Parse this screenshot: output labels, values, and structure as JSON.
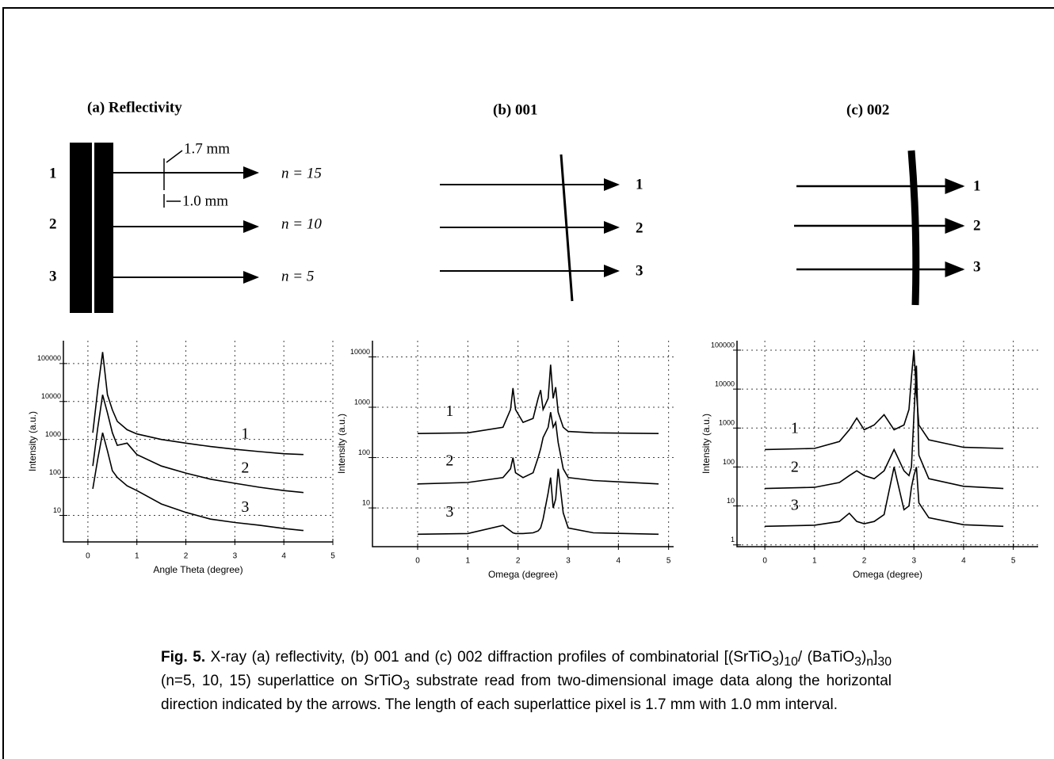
{
  "panels": [
    {
      "title": "(a) Reflectivity",
      "rows": [
        "1",
        "2",
        "3"
      ],
      "arrow_labels": [
        "n = 15",
        "n = 10",
        "n = 5"
      ],
      "dims": [
        "1.7 mm",
        "1.0 mm"
      ]
    },
    {
      "title": "(b) 001",
      "rows": [
        "1",
        "2",
        "3"
      ]
    },
    {
      "title": "(c) 002",
      "rows": [
        "1",
        "2",
        "3"
      ]
    }
  ],
  "chart_data": [
    {
      "type": "line",
      "xlabel": "Angle Theta (degree)",
      "ylabel": "Intensity (a.u.)",
      "log_y": true,
      "grid": true,
      "x": [
        0.1,
        0.2,
        0.3,
        0.4,
        0.5,
        0.6,
        0.8,
        1,
        1.5,
        2,
        2.5,
        3,
        3.5,
        4,
        4.4
      ],
      "xlim": [
        -0.5,
        5
      ],
      "xticks": [
        0,
        1,
        2,
        3,
        4,
        5
      ],
      "ylim": [
        2,
        400000
      ],
      "yticks": [
        10,
        100,
        1000,
        10000,
        100000
      ],
      "series": [
        {
          "name": "1",
          "color": "#000000",
          "values": [
            1500,
            20000,
            200000,
            15000,
            6000,
            3000,
            1800,
            1400,
            1000,
            800,
            650,
            550,
            480,
            420,
            400
          ]
        },
        {
          "name": "2",
          "color": "#000000",
          "values": [
            200,
            2000,
            15000,
            5000,
            1500,
            700,
            800,
            400,
            200,
            130,
            90,
            70,
            55,
            45,
            40
          ]
        },
        {
          "name": "3",
          "color": "#000000",
          "values": [
            50,
            300,
            1500,
            500,
            150,
            100,
            60,
            45,
            20,
            12,
            8,
            6.5,
            5.5,
            4.5,
            4
          ]
        }
      ]
    },
    {
      "type": "line",
      "xlabel": "Omega (degree)",
      "ylabel": "Intensity (a.u.)",
      "log_y": true,
      "grid": true,
      "x": [
        0,
        1,
        1.7,
        1.85,
        1.9,
        1.95,
        2.1,
        2.3,
        2.4,
        2.45,
        2.5,
        2.6,
        2.65,
        2.7,
        2.75,
        2.8,
        2.9,
        3,
        3.5,
        4.8
      ],
      "xlim": [
        -0.9,
        5.1
      ],
      "xticks": [
        0,
        1,
        2,
        3,
        4,
        5
      ],
      "ylim": [
        1.7,
        21000
      ],
      "yticks": [
        10,
        100,
        1000,
        10000
      ],
      "series": [
        {
          "name": "1",
          "color": "#000000",
          "values": [
            300,
            310,
            400,
            900,
            2400,
            900,
            500,
            600,
            1500,
            2200,
            900,
            1500,
            7000,
            1500,
            2500,
            800,
            400,
            330,
            310,
            300
          ]
        },
        {
          "name": "2",
          "color": "#000000",
          "values": [
            30,
            32,
            40,
            60,
            100,
            50,
            40,
            50,
            100,
            150,
            250,
            400,
            800,
            400,
            500,
            200,
            60,
            40,
            35,
            30
          ]
        },
        {
          "name": "3",
          "color": "#000000",
          "values": [
            3,
            3.1,
            4.5,
            3.5,
            3.2,
            3.1,
            3.1,
            3.2,
            3.5,
            4,
            6,
            20,
            40,
            10,
            15,
            60,
            8,
            4,
            3.2,
            3
          ]
        }
      ]
    },
    {
      "type": "line",
      "xlabel": "Omega (degree)",
      "ylabel": "Intensity (a.u.)",
      "log_y": true,
      "grid": true,
      "x": [
        0,
        1,
        1.5,
        1.7,
        1.85,
        2,
        2.2,
        2.4,
        2.6,
        2.8,
        2.9,
        2.95,
        3,
        3.05,
        3.1,
        3.3,
        4,
        4.8
      ],
      "xlim": [
        -0.56,
        5.5
      ],
      "xticks": [
        0,
        1,
        2,
        3,
        4,
        5
      ],
      "ylim": [
        0.9,
        175000
      ],
      "yticks": [
        1,
        10,
        100,
        1000,
        10000,
        100000
      ],
      "series": [
        {
          "name": "1",
          "color": "#000000",
          "values": [
            280,
            300,
            450,
            900,
            1800,
            900,
            1200,
            2200,
            900,
            1200,
            3000,
            20000,
            100000,
            8000,
            1200,
            500,
            320,
            300
          ]
        },
        {
          "name": "2",
          "color": "#000000",
          "values": [
            28,
            30,
            40,
            60,
            80,
            60,
            50,
            80,
            280,
            80,
            60,
            100,
            2000,
            40000,
            200,
            50,
            32,
            28
          ]
        },
        {
          "name": "3",
          "color": "#000000",
          "values": [
            3,
            3.2,
            4,
            6.5,
            4,
            3.5,
            4,
            6,
            100,
            8,
            10,
            30,
            60,
            100,
            12,
            5,
            3.3,
            3
          ]
        }
      ]
    }
  ],
  "caption": {
    "label": "Fig. 5.",
    "parts": [
      " X-ray (a) reflectivity, (b) 001 and (c) 002 diffraction profiles of combinatorial [(SrTiO",
      "3",
      ")",
      "10",
      "/ (BaTiO",
      "3",
      ")",
      "n",
      "]",
      "30",
      " (n=5, 10, 15) superlattice on SrTiO",
      "3",
      " substrate read from two-dimensional image data along the horizontal direction indicated by the arrows. The length of each superlattice pixel is 1.7 mm with 1.0 mm interval."
    ]
  }
}
